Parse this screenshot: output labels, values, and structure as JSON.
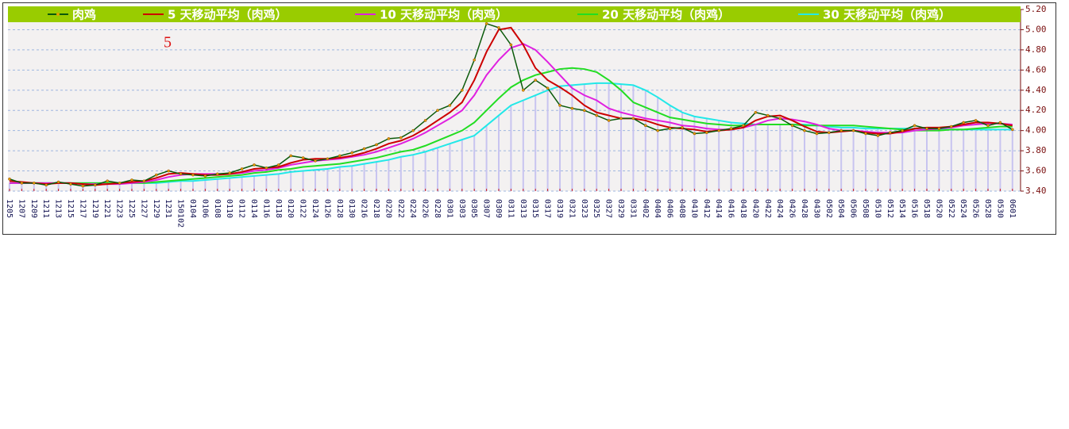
{
  "chart_data": {
    "type": "line",
    "annotation": "5",
    "categories": [
      "1205",
      "1207",
      "1209",
      "1211",
      "1213",
      "1215",
      "1217",
      "1219",
      "1221",
      "1223",
      "1225",
      "1227",
      "1229",
      "1231",
      "150102",
      "0104",
      "0106",
      "0108",
      "0110",
      "0112",
      "0114",
      "0116",
      "0118",
      "0120",
      "0122",
      "0124",
      "0126",
      "0128",
      "0130",
      "0216",
      "0218",
      "0220",
      "0222",
      "0224",
      "0226",
      "0228",
      "0301",
      "0303",
      "0305",
      "0307",
      "0309",
      "0311",
      "0313",
      "0315",
      "0317",
      "0319",
      "0321",
      "0323",
      "0325",
      "0327",
      "0329",
      "0331",
      "0402",
      "0404",
      "0406",
      "0408",
      "0410",
      "0412",
      "0414",
      "0416",
      "0418",
      "0420",
      "0422",
      "0424",
      "0426",
      "0428",
      "0430",
      "0502",
      "0504",
      "0506",
      "0508",
      "0510",
      "0512",
      "0514",
      "0516",
      "0518",
      "0520",
      "0522",
      "0524",
      "0526",
      "0528",
      "0530",
      "0601"
    ],
    "series": [
      {
        "name": "肉鸡",
        "color": "#0a5a0a",
        "markers": true,
        "values": [
          3.52,
          3.48,
          3.48,
          3.46,
          3.49,
          3.47,
          3.45,
          3.46,
          3.5,
          3.48,
          3.51,
          3.5,
          3.56,
          3.6,
          3.57,
          3.56,
          3.55,
          3.57,
          3.58,
          3.62,
          3.66,
          3.63,
          3.66,
          3.75,
          3.73,
          3.7,
          3.72,
          3.75,
          3.78,
          3.82,
          3.86,
          3.92,
          3.93,
          4.0,
          4.1,
          4.2,
          4.25,
          4.4,
          4.7,
          5.06,
          5.02,
          4.85,
          4.4,
          4.5,
          4.42,
          4.25,
          4.22,
          4.2,
          4.15,
          4.1,
          4.12,
          4.12,
          4.05,
          4.0,
          4.02,
          4.03,
          3.97,
          3.98,
          4.0,
          4.02,
          4.05,
          4.18,
          4.15,
          4.12,
          4.05,
          4.0,
          3.97,
          3.98,
          4.0,
          4.0,
          3.97,
          3.95,
          3.98,
          4.0,
          4.05,
          4.02,
          4.02,
          4.04,
          4.08,
          4.1,
          4.05,
          4.08,
          4.01
        ]
      },
      {
        "name": "5 天移动平均（肉鸡）",
        "color": "#cc0000",
        "values": [
          3.5,
          3.49,
          3.48,
          3.47,
          3.48,
          3.48,
          3.47,
          3.46,
          3.47,
          3.48,
          3.49,
          3.5,
          3.53,
          3.57,
          3.58,
          3.57,
          3.56,
          3.56,
          3.57,
          3.59,
          3.62,
          3.63,
          3.64,
          3.68,
          3.71,
          3.72,
          3.72,
          3.73,
          3.75,
          3.78,
          3.82,
          3.87,
          3.9,
          3.95,
          4.02,
          4.1,
          4.18,
          4.28,
          4.5,
          4.78,
          5.0,
          5.02,
          4.85,
          4.62,
          4.5,
          4.43,
          4.35,
          4.25,
          4.18,
          4.15,
          4.12,
          4.12,
          4.1,
          4.06,
          4.03,
          4.02,
          4.01,
          3.99,
          4.0,
          4.01,
          4.03,
          4.1,
          4.14,
          4.15,
          4.1,
          4.04,
          3.99,
          3.98,
          3.99,
          4.0,
          3.98,
          3.97,
          3.97,
          3.99,
          4.02,
          4.03,
          4.03,
          4.04,
          4.06,
          4.08,
          4.08,
          4.07,
          4.05
        ]
      },
      {
        "name": "10 天移动平均（肉鸡）",
        "color": "#e020e0",
        "values": [
          3.48,
          3.48,
          3.48,
          3.48,
          3.48,
          3.48,
          3.47,
          3.47,
          3.47,
          3.47,
          3.48,
          3.49,
          3.51,
          3.54,
          3.56,
          3.57,
          3.57,
          3.57,
          3.57,
          3.58,
          3.6,
          3.61,
          3.63,
          3.66,
          3.68,
          3.7,
          3.71,
          3.72,
          3.74,
          3.76,
          3.79,
          3.83,
          3.87,
          3.92,
          3.98,
          4.05,
          4.12,
          4.2,
          4.35,
          4.55,
          4.7,
          4.82,
          4.86,
          4.8,
          4.68,
          4.55,
          4.42,
          4.35,
          4.3,
          4.22,
          4.18,
          4.15,
          4.12,
          4.1,
          4.08,
          4.05,
          4.04,
          4.02,
          4.01,
          4.01,
          4.03,
          4.06,
          4.1,
          4.12,
          4.11,
          4.09,
          4.06,
          4.02,
          4.0,
          4.0,
          3.99,
          3.98,
          3.98,
          3.98,
          4.0,
          4.01,
          4.02,
          4.03,
          4.05,
          4.06,
          4.07,
          4.07,
          4.06
        ]
      },
      {
        "name": "20 天移动平均（肉鸡）",
        "color": "#22dd22",
        "values": [
          3.48,
          3.48,
          3.48,
          3.48,
          3.48,
          3.48,
          3.48,
          3.48,
          3.48,
          3.48,
          3.48,
          3.48,
          3.49,
          3.5,
          3.51,
          3.52,
          3.53,
          3.54,
          3.55,
          3.56,
          3.58,
          3.59,
          3.61,
          3.62,
          3.64,
          3.65,
          3.66,
          3.67,
          3.69,
          3.71,
          3.73,
          3.76,
          3.79,
          3.81,
          3.85,
          3.9,
          3.95,
          4.0,
          4.08,
          4.2,
          4.32,
          4.43,
          4.5,
          4.55,
          4.58,
          4.61,
          4.62,
          4.61,
          4.58,
          4.5,
          4.4,
          4.28,
          4.23,
          4.18,
          4.13,
          4.11,
          4.09,
          4.07,
          4.06,
          4.05,
          4.05,
          4.06,
          4.06,
          4.06,
          4.06,
          4.05,
          4.05,
          4.05,
          4.05,
          4.05,
          4.04,
          4.03,
          4.02,
          4.01,
          4.0,
          4.0,
          4.0,
          4.01,
          4.01,
          4.02,
          4.03,
          4.04,
          4.04
        ]
      },
      {
        "name": "30 天移动平均（肉鸡）",
        "color": "#22e8e8",
        "bars_color": "#c8c4f0",
        "values": [
          3.48,
          3.48,
          3.48,
          3.48,
          3.48,
          3.48,
          3.48,
          3.48,
          3.48,
          3.48,
          3.48,
          3.48,
          3.48,
          3.49,
          3.5,
          3.5,
          3.51,
          3.52,
          3.53,
          3.54,
          3.55,
          3.56,
          3.57,
          3.59,
          3.6,
          3.61,
          3.62,
          3.64,
          3.65,
          3.67,
          3.69,
          3.71,
          3.74,
          3.76,
          3.79,
          3.83,
          3.87,
          3.91,
          3.95,
          4.05,
          4.15,
          4.25,
          4.3,
          4.35,
          4.4,
          4.44,
          4.45,
          4.46,
          4.47,
          4.47,
          4.46,
          4.45,
          4.4,
          4.33,
          4.25,
          4.18,
          4.14,
          4.12,
          4.1,
          4.08,
          4.07,
          4.06,
          4.06,
          4.06,
          4.06,
          4.06,
          4.05,
          4.04,
          4.03,
          4.03,
          4.02,
          4.02,
          4.02,
          4.02,
          4.02,
          4.02,
          4.01,
          4.01,
          4.01,
          4.01,
          4.01,
          4.01,
          4.01
        ]
      }
    ],
    "ylim": [
      3.4,
      5.2
    ],
    "yticks": [
      {
        "value": 3.4,
        "label": "3.40"
      },
      {
        "value": 3.6,
        "label": "3.60"
      },
      {
        "value": 3.8,
        "label": "3.80"
      },
      {
        "value": 4.0,
        "label": "4.00"
      },
      {
        "value": 4.2,
        "label": "4.20"
      },
      {
        "value": 4.4,
        "label": "4.40"
      },
      {
        "value": 4.6,
        "label": "4.60"
      },
      {
        "value": 4.8,
        "label": "4.80"
      },
      {
        "value": 5.0,
        "label": "5.00"
      },
      {
        "value": 5.2,
        "label": "5.20"
      }
    ],
    "grid": true,
    "legend_color": "#99cc00"
  }
}
